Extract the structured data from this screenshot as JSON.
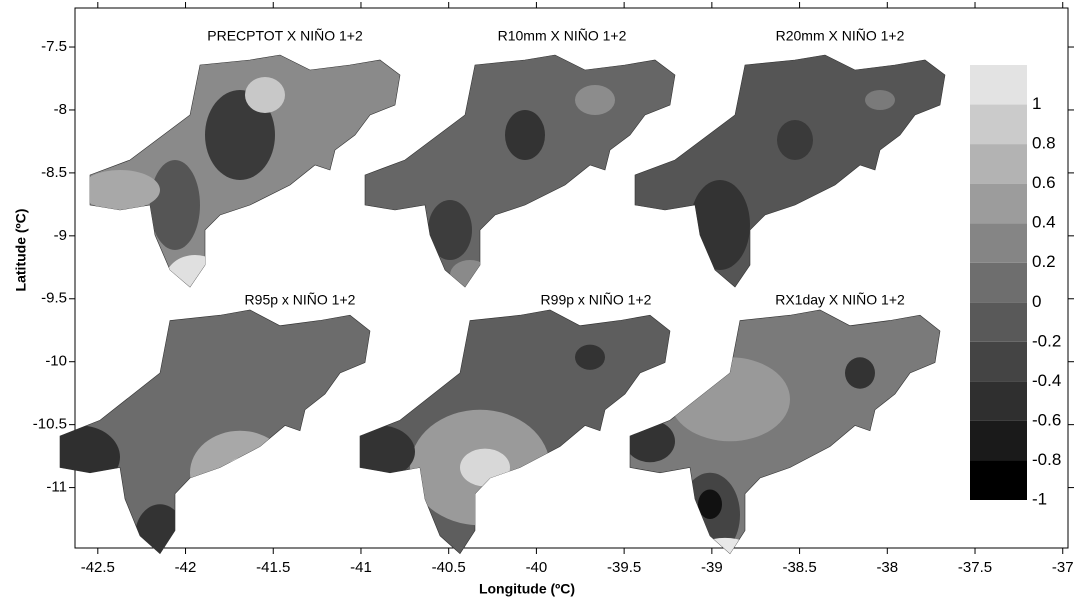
{
  "chart_data": {
    "type": "contour",
    "xlabel": "Longitude (ºC)",
    "ylabel": "Latitude (ºC)",
    "panel_titles": [
      "PRECPTOT X NIÑO 1+2",
      "R10mm X NIÑO 1+2",
      "R20mm X NIÑO 1+2",
      "R95p x NIÑO 1+2",
      "R99p x NIÑO 1+2",
      "RX1day X NIÑO 1+2"
    ],
    "xlim": [
      -42.63,
      -36.97
    ],
    "ylim": [
      -11.48,
      -7.19
    ],
    "xticks": [
      -42.5,
      -42,
      -41.5,
      -41,
      -40.5,
      -40,
      -39.5,
      -39,
      -38.5,
      -38,
      -37.5,
      -37
    ],
    "yticks": [
      -7.5,
      -8,
      -8.5,
      -9,
      -9.5,
      -10,
      -10.5,
      -11
    ],
    "colorbar": {
      "lim": [
        -1,
        1.2
      ],
      "ticks": [
        -1,
        -0.8,
        -0.6,
        -0.4,
        -0.2,
        0,
        0.2,
        0.4,
        0.6,
        0.8,
        1
      ],
      "colors": [
        "#000000",
        "#1a1a1a",
        "#2f2f2f",
        "#444444",
        "#595959",
        "#6e6e6e",
        "#858585",
        "#9c9c9c",
        "#b3b3b3",
        "#cbcbcb",
        "#e3e3e3"
      ]
    }
  }
}
